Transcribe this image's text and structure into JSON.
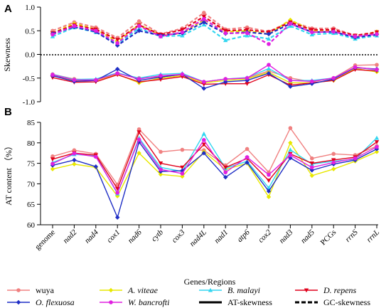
{
  "chart_data": [
    {
      "panel": "A",
      "type": "line",
      "ylabel": "Skewness",
      "ylim": [
        -1.0,
        1.0
      ],
      "yticks": [
        -1.0,
        -0.5,
        0.0,
        0.5,
        1.0
      ],
      "ytick_labels": [
        "-1.0",
        "-0.5",
        "0.0",
        "0.5",
        "1.0"
      ],
      "categories": [
        "genome",
        "nad2",
        "nad4",
        "cox1",
        "nad6",
        "cytb",
        "cox3",
        "nad4L",
        "nad1",
        "atp6",
        "cox2",
        "nad3",
        "nad5",
        "PCGs",
        "rrnS",
        "rrnL"
      ],
      "series": [
        {
          "name": "wuya",
          "color": "#f08080",
          "marker": "circle",
          "metric": "AT",
          "values": [
            -0.42,
            -0.52,
            -0.55,
            -0.4,
            -0.5,
            -0.47,
            -0.43,
            -0.58,
            -0.52,
            -0.5,
            -0.35,
            -0.5,
            -0.58,
            -0.5,
            -0.23,
            -0.22
          ]
        },
        {
          "name": "wuya",
          "color": "#f08080",
          "marker": "circle",
          "metric": "GC",
          "values": [
            0.5,
            0.68,
            0.57,
            0.35,
            0.7,
            0.43,
            0.55,
            0.88,
            0.53,
            0.57,
            0.48,
            0.7,
            0.55,
            0.55,
            0.4,
            0.44
          ]
        },
        {
          "name": "A. viteae",
          "color": "#e8e800",
          "marker": "diamond",
          "metric": "AT",
          "values": [
            -0.45,
            -0.55,
            -0.55,
            -0.42,
            -0.6,
            -0.5,
            -0.45,
            -0.6,
            -0.55,
            -0.52,
            -0.38,
            -0.6,
            -0.6,
            -0.55,
            -0.3,
            -0.37
          ]
        },
        {
          "name": "A. viteae",
          "color": "#e8e800",
          "marker": "diamond",
          "metric": "GC",
          "values": [
            0.45,
            0.65,
            0.53,
            0.27,
            0.63,
            0.4,
            0.45,
            0.73,
            0.48,
            0.5,
            0.43,
            0.73,
            0.5,
            0.5,
            0.38,
            0.48
          ]
        },
        {
          "name": "B. malayi",
          "color": "#33d6f0",
          "marker": "triangle",
          "metric": "AT",
          "values": [
            -0.42,
            -0.53,
            -0.52,
            -0.39,
            -0.5,
            -0.42,
            -0.4,
            -0.58,
            -0.52,
            -0.49,
            -0.3,
            -0.55,
            -0.55,
            -0.5,
            -0.27,
            -0.33
          ]
        },
        {
          "name": "B. malayi",
          "color": "#33d6f0",
          "marker": "triangle",
          "metric": "GC",
          "values": [
            0.38,
            0.57,
            0.47,
            0.22,
            0.55,
            0.38,
            0.4,
            0.63,
            0.3,
            0.4,
            0.33,
            0.6,
            0.42,
            0.45,
            0.33,
            0.4
          ]
        },
        {
          "name": "D. repens",
          "color": "#e0001b",
          "marker": "invtriangle",
          "metric": "AT",
          "values": [
            -0.49,
            -0.59,
            -0.58,
            -0.43,
            -0.58,
            -0.53,
            -0.47,
            -0.63,
            -0.62,
            -0.62,
            -0.43,
            -0.65,
            -0.6,
            -0.55,
            -0.32,
            -0.35
          ]
        },
        {
          "name": "D. repens",
          "color": "#e0001b",
          "marker": "invtriangle",
          "metric": "GC",
          "values": [
            0.45,
            0.62,
            0.53,
            0.31,
            0.62,
            0.42,
            0.52,
            0.8,
            0.5,
            0.52,
            0.47,
            0.68,
            0.52,
            0.52,
            0.4,
            0.47
          ]
        },
        {
          "name": "O. flexuosa",
          "color": "#1f2ec5",
          "marker": "diamond",
          "metric": "AT",
          "values": [
            -0.45,
            -0.57,
            -0.55,
            -0.31,
            -0.55,
            -0.48,
            -0.42,
            -0.72,
            -0.58,
            -0.55,
            -0.4,
            -0.68,
            -0.62,
            -0.52,
            -0.28,
            -0.31
          ]
        },
        {
          "name": "O. flexuosa",
          "color": "#1f2ec5",
          "marker": "diamond",
          "metric": "GC",
          "values": [
            0.44,
            0.58,
            0.48,
            0.19,
            0.5,
            0.4,
            0.45,
            0.68,
            0.44,
            0.47,
            0.43,
            0.65,
            0.47,
            0.48,
            0.36,
            0.42
          ]
        },
        {
          "name": "W. bancrofti",
          "color": "#e020e0",
          "marker": "circle",
          "metric": "AT",
          "values": [
            -0.43,
            -0.54,
            -0.54,
            -0.4,
            -0.52,
            -0.45,
            -0.42,
            -0.58,
            -0.52,
            -0.5,
            -0.22,
            -0.55,
            -0.57,
            -0.5,
            -0.27,
            -0.32
          ]
        },
        {
          "name": "W. bancrofti",
          "color": "#e020e0",
          "marker": "circle",
          "metric": "GC",
          "values": [
            0.42,
            0.6,
            0.5,
            0.24,
            0.6,
            0.38,
            0.47,
            0.75,
            0.45,
            0.45,
            0.22,
            0.65,
            0.47,
            0.48,
            0.38,
            0.43
          ]
        }
      ]
    },
    {
      "panel": "B",
      "type": "line",
      "ylabel": "AT content （%）",
      "xlabel": "Genes/Regions",
      "ylim": [
        60,
        85
      ],
      "yticks": [
        60,
        65,
        70,
        75,
        80,
        85
      ],
      "ytick_labels": [
        "60",
        "65",
        "70",
        "75",
        "80",
        "85"
      ],
      "categories": [
        "genome",
        "nad2",
        "nad4",
        "cox1",
        "nad6",
        "cytb",
        "cox3",
        "nad4L",
        "nad1",
        "atp6",
        "cox2",
        "nad3",
        "nad5",
        "PCGs",
        "rrnS",
        "rrnL"
      ],
      "series": [
        {
          "name": "wuya",
          "color": "#f08080",
          "marker": "circle",
          "values": [
            76.7,
            78.2,
            77.3,
            69.8,
            83.3,
            77.8,
            78.3,
            78.2,
            74.5,
            78.5,
            72.8,
            83.6,
            76.2,
            77.3,
            77.0,
            79.2
          ]
        },
        {
          "name": "A. viteae",
          "color": "#e8e800",
          "marker": "diamond",
          "values": [
            73.6,
            74.8,
            74.0,
            67.0,
            77.5,
            72.3,
            71.8,
            77.8,
            73.5,
            75.0,
            66.8,
            80.0,
            72.0,
            73.6,
            75.5,
            77.8
          ]
        },
        {
          "name": "B. malayi",
          "color": "#33d6f0",
          "marker": "triangle",
          "values": [
            75.2,
            77.2,
            76.8,
            67.6,
            81.2,
            74.0,
            73.0,
            82.2,
            73.8,
            75.5,
            69.0,
            78.3,
            74.8,
            75.5,
            76.0,
            81.2
          ]
        },
        {
          "name": "D. repens",
          "color": "#e0001b",
          "marker": "invtriangle",
          "values": [
            76.0,
            77.5,
            77.0,
            68.8,
            82.6,
            75.0,
            74.0,
            79.6,
            74.0,
            76.2,
            70.8,
            77.3,
            75.0,
            75.8,
            76.5,
            80.2
          ]
        },
        {
          "name": "O. flexuosa",
          "color": "#1f2ec5",
          "marker": "diamond",
          "values": [
            74.5,
            75.8,
            74.2,
            61.8,
            80.2,
            73.0,
            73.2,
            77.5,
            71.6,
            75.2,
            68.2,
            76.3,
            73.3,
            74.8,
            75.8,
            78.5
          ]
        },
        {
          "name": "W. bancrofti",
          "color": "#e020e0",
          "marker": "circle",
          "values": [
            74.9,
            77.4,
            76.6,
            67.8,
            80.8,
            73.5,
            72.5,
            80.7,
            72.8,
            76.5,
            72.2,
            77.0,
            74.0,
            75.2,
            76.2,
            79.0
          ]
        }
      ]
    }
  ],
  "panel_labels": [
    "A",
    "B"
  ],
  "legend": {
    "items": [
      {
        "label": "wuya",
        "color": "#f08080",
        "marker": "circle",
        "italic": false,
        "style": "series"
      },
      {
        "label": "A. viteae",
        "color": "#e8e800",
        "marker": "diamond",
        "italic": true,
        "style": "series"
      },
      {
        "label": "B. malayi",
        "color": "#33d6f0",
        "marker": "triangle",
        "italic": true,
        "style": "series"
      },
      {
        "label": "D. repens",
        "color": "#e0001b",
        "marker": "invtriangle",
        "italic": true,
        "style": "series"
      },
      {
        "label": "O. flexuosa",
        "color": "#1f2ec5",
        "marker": "diamond",
        "italic": true,
        "style": "series"
      },
      {
        "label": "W. bancrofti",
        "color": "#e020e0",
        "marker": "circle",
        "italic": true,
        "style": "series"
      },
      {
        "label": "AT-skewness",
        "color": "#000000",
        "marker": "none",
        "italic": false,
        "style": "solid"
      },
      {
        "label": "GC-skewness",
        "color": "#000000",
        "marker": "none",
        "italic": false,
        "style": "dashed"
      }
    ]
  },
  "x_label_style": {
    "italic_categories": [
      "nad2",
      "nad4",
      "cox1",
      "nad6",
      "cytb",
      "cox3",
      "nad4L",
      "nad1",
      "atp6",
      "cox2",
      "nad3",
      "nad5",
      "rrnS",
      "rrnL"
    ]
  }
}
